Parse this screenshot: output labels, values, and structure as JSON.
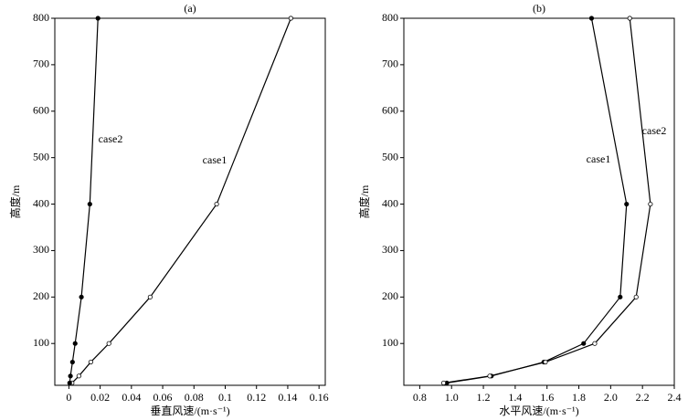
{
  "chart_data": [
    {
      "type": "line",
      "title": "(a)",
      "x_label": "垂直风速/(m·s⁻¹)",
      "y_label": "高度/m",
      "xlim": [
        -0.009,
        0.164
      ],
      "ylim": [
        10,
        800
      ],
      "xticks": [
        0,
        0.02,
        0.04,
        0.06,
        0.08,
        0.1,
        0.12,
        0.14,
        0.16
      ],
      "yticks": [
        100,
        200,
        300,
        400,
        500,
        600,
        700,
        800
      ],
      "series": [
        {
          "name": "case1",
          "color": "#000000",
          "marker": "open",
          "x": [
            0.142,
            0.0945,
            0.052,
            0.0256,
            0.014,
            0.0064,
            0.002
          ],
          "values": [
            800,
            400,
            200,
            100,
            60,
            30,
            15
          ]
        },
        {
          "name": "case2",
          "color": "#000000",
          "marker": "filled",
          "x": [
            0.0186,
            0.0134,
            0.008,
            0.004,
            0.0023,
            0.001,
            0.0005
          ],
          "values": [
            800,
            400,
            200,
            100,
            60,
            30,
            15
          ]
        }
      ]
    },
    {
      "type": "line",
      "title": "(b)",
      "x_label": "水平风速/(m·s⁻¹)",
      "y_label": "高度/m",
      "xlim": [
        0.7,
        2.4
      ],
      "ylim": [
        10,
        800
      ],
      "xticks": [
        0.8,
        {
          "value": 1,
          "label": "1.0"
        },
        1.2,
        1.4,
        1.6,
        1.8,
        {
          "value": 2,
          "label": "2.0"
        },
        2.2,
        2.4
      ],
      "yticks": [
        100,
        200,
        300,
        400,
        500,
        600,
        700,
        800
      ],
      "series": [
        {
          "name": "case1",
          "color": "#000000",
          "marker": "filled",
          "x": [
            1.88,
            2.1,
            2.06,
            1.83,
            1.58,
            1.25,
            0.97
          ],
          "values": [
            800,
            400,
            200,
            100,
            60,
            30,
            15
          ]
        },
        {
          "name": "case2",
          "color": "#000000",
          "marker": "open",
          "x": [
            2.12,
            2.25,
            2.16,
            1.9,
            1.59,
            1.24,
            0.95
          ],
          "values": [
            800,
            400,
            200,
            100,
            60,
            30,
            15
          ]
        }
      ]
    }
  ]
}
